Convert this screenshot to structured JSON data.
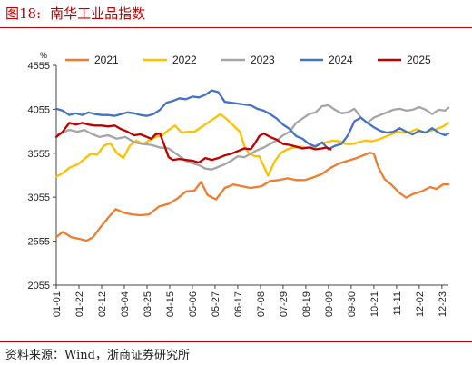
{
  "figure": {
    "number": "图18:",
    "title": "南华工业品指数",
    "source": "资料来源：Wind，浙商证券研究所",
    "title_color": "#c00000"
  },
  "chart_data": {
    "type": "line",
    "unit_label": "%",
    "ylim": [
      2055,
      4555
    ],
    "yticks": [
      2055,
      2555,
      3055,
      3555,
      4055,
      4555
    ],
    "xlim": [
      0,
      363
    ],
    "xticks": [
      {
        "label": "01-01",
        "day": 0
      },
      {
        "label": "01-22",
        "day": 21
      },
      {
        "label": "02-12",
        "day": 42
      },
      {
        "label": "03-04",
        "day": 63
      },
      {
        "label": "03-25",
        "day": 84
      },
      {
        "label": "04-15",
        "day": 105
      },
      {
        "label": "05-06",
        "day": 126
      },
      {
        "label": "05-27",
        "day": 147
      },
      {
        "label": "06-17",
        "day": 168
      },
      {
        "label": "07-08",
        "day": 189
      },
      {
        "label": "07-29",
        "day": 210
      },
      {
        "label": "08-19",
        "day": 231
      },
      {
        "label": "09-09",
        "day": 252
      },
      {
        "label": "09-30",
        "day": 273
      },
      {
        "label": "10-21",
        "day": 294
      },
      {
        "label": "11-11",
        "day": 315
      },
      {
        "label": "12-02",
        "day": 336
      },
      {
        "label": "12-23",
        "day": 357
      }
    ],
    "legend_position": "top",
    "grid": false,
    "series": [
      {
        "name": "2021",
        "color": "#ed7d31",
        "points": [
          [
            0,
            2600
          ],
          [
            6,
            2660
          ],
          [
            14,
            2600
          ],
          [
            22,
            2580
          ],
          [
            28,
            2560
          ],
          [
            34,
            2600
          ],
          [
            40,
            2700
          ],
          [
            48,
            2820
          ],
          [
            55,
            2920
          ],
          [
            62,
            2880
          ],
          [
            70,
            2860
          ],
          [
            78,
            2850
          ],
          [
            86,
            2860
          ],
          [
            95,
            2950
          ],
          [
            104,
            2980
          ],
          [
            112,
            3040
          ],
          [
            120,
            3120
          ],
          [
            128,
            3130
          ],
          [
            134,
            3230
          ],
          [
            140,
            3080
          ],
          [
            148,
            3030
          ],
          [
            156,
            3160
          ],
          [
            164,
            3200
          ],
          [
            172,
            3180
          ],
          [
            180,
            3160
          ],
          [
            190,
            3180
          ],
          [
            198,
            3240
          ],
          [
            206,
            3250
          ],
          [
            214,
            3270
          ],
          [
            222,
            3250
          ],
          [
            230,
            3250
          ],
          [
            238,
            3280
          ],
          [
            246,
            3320
          ],
          [
            254,
            3390
          ],
          [
            262,
            3440
          ],
          [
            270,
            3470
          ],
          [
            278,
            3500
          ],
          [
            284,
            3530
          ],
          [
            290,
            3560
          ],
          [
            294,
            3550
          ],
          [
            298,
            3400
          ],
          [
            304,
            3260
          ],
          [
            310,
            3200
          ],
          [
            318,
            3100
          ],
          [
            324,
            3050
          ],
          [
            330,
            3090
          ],
          [
            338,
            3120
          ],
          [
            346,
            3170
          ],
          [
            352,
            3150
          ],
          [
            358,
            3200
          ],
          [
            363,
            3200
          ]
        ]
      },
      {
        "name": "2022",
        "color": "#ffc000",
        "points": [
          [
            0,
            3290
          ],
          [
            6,
            3330
          ],
          [
            12,
            3390
          ],
          [
            20,
            3430
          ],
          [
            26,
            3490
          ],
          [
            32,
            3550
          ],
          [
            38,
            3540
          ],
          [
            44,
            3640
          ],
          [
            50,
            3670
          ],
          [
            56,
            3560
          ],
          [
            62,
            3500
          ],
          [
            68,
            3640
          ],
          [
            74,
            3700
          ],
          [
            80,
            3660
          ],
          [
            86,
            3700
          ],
          [
            92,
            3740
          ],
          [
            98,
            3760
          ],
          [
            104,
            3820
          ],
          [
            110,
            3870
          ],
          [
            116,
            3790
          ],
          [
            122,
            3800
          ],
          [
            128,
            3800
          ],
          [
            134,
            3850
          ],
          [
            140,
            3900
          ],
          [
            146,
            3950
          ],
          [
            152,
            4000
          ],
          [
            158,
            3940
          ],
          [
            164,
            3870
          ],
          [
            170,
            3800
          ],
          [
            174,
            3640
          ],
          [
            178,
            3560
          ],
          [
            184,
            3520
          ],
          [
            188,
            3520
          ],
          [
            192,
            3410
          ],
          [
            196,
            3300
          ],
          [
            202,
            3460
          ],
          [
            208,
            3560
          ],
          [
            214,
            3600
          ],
          [
            220,
            3620
          ],
          [
            226,
            3630
          ],
          [
            232,
            3620
          ],
          [
            238,
            3630
          ],
          [
            244,
            3660
          ],
          [
            250,
            3680
          ],
          [
            256,
            3700
          ],
          [
            262,
            3690
          ],
          [
            268,
            3660
          ],
          [
            274,
            3660
          ],
          [
            280,
            3680
          ],
          [
            286,
            3700
          ],
          [
            292,
            3690
          ],
          [
            298,
            3710
          ],
          [
            304,
            3740
          ],
          [
            310,
            3770
          ],
          [
            316,
            3800
          ],
          [
            322,
            3790
          ],
          [
            328,
            3800
          ],
          [
            334,
            3830
          ],
          [
            340,
            3790
          ],
          [
            346,
            3810
          ],
          [
            352,
            3830
          ],
          [
            358,
            3860
          ],
          [
            363,
            3900
          ]
        ]
      },
      {
        "name": "2023",
        "color": "#a5a5a5",
        "points": [
          [
            0,
            3770
          ],
          [
            6,
            3790
          ],
          [
            12,
            3820
          ],
          [
            20,
            3800
          ],
          [
            26,
            3820
          ],
          [
            32,
            3780
          ],
          [
            40,
            3740
          ],
          [
            48,
            3760
          ],
          [
            56,
            3720
          ],
          [
            64,
            3740
          ],
          [
            72,
            3680
          ],
          [
            80,
            3660
          ],
          [
            88,
            3650
          ],
          [
            96,
            3620
          ],
          [
            104,
            3610
          ],
          [
            112,
            3540
          ],
          [
            120,
            3470
          ],
          [
            126,
            3440
          ],
          [
            132,
            3420
          ],
          [
            138,
            3380
          ],
          [
            144,
            3370
          ],
          [
            150,
            3400
          ],
          [
            156,
            3430
          ],
          [
            162,
            3470
          ],
          [
            168,
            3520
          ],
          [
            174,
            3510
          ],
          [
            180,
            3550
          ],
          [
            186,
            3590
          ],
          [
            192,
            3620
          ],
          [
            198,
            3660
          ],
          [
            204,
            3700
          ],
          [
            210,
            3760
          ],
          [
            216,
            3800
          ],
          [
            222,
            3900
          ],
          [
            228,
            3950
          ],
          [
            234,
            4000
          ],
          [
            240,
            4020
          ],
          [
            246,
            4090
          ],
          [
            252,
            4100
          ],
          [
            258,
            4050
          ],
          [
            264,
            4010
          ],
          [
            270,
            4020
          ],
          [
            276,
            4060
          ],
          [
            282,
            3960
          ],
          [
            288,
            3900
          ],
          [
            294,
            3960
          ],
          [
            300,
            3990
          ],
          [
            306,
            4020
          ],
          [
            312,
            4050
          ],
          [
            318,
            4060
          ],
          [
            324,
            4040
          ],
          [
            330,
            4050
          ],
          [
            336,
            4080
          ],
          [
            342,
            4050
          ],
          [
            348,
            4000
          ],
          [
            354,
            4050
          ],
          [
            360,
            4040
          ],
          [
            363,
            4070
          ]
        ]
      },
      {
        "name": "2024",
        "color": "#4472c4",
        "points": [
          [
            0,
            4060
          ],
          [
            6,
            4040
          ],
          [
            12,
            3990
          ],
          [
            18,
            4010
          ],
          [
            24,
            3990
          ],
          [
            30,
            4020
          ],
          [
            36,
            4000
          ],
          [
            42,
            3990
          ],
          [
            48,
            3990
          ],
          [
            54,
            3980
          ],
          [
            60,
            4000
          ],
          [
            66,
            4020
          ],
          [
            72,
            4010
          ],
          [
            78,
            3990
          ],
          [
            84,
            3980
          ],
          [
            90,
            4000
          ],
          [
            96,
            4050
          ],
          [
            102,
            4130
          ],
          [
            108,
            4150
          ],
          [
            114,
            4180
          ],
          [
            120,
            4170
          ],
          [
            126,
            4200
          ],
          [
            132,
            4190
          ],
          [
            138,
            4220
          ],
          [
            144,
            4270
          ],
          [
            150,
            4250
          ],
          [
            156,
            4140
          ],
          [
            162,
            4130
          ],
          [
            168,
            4120
          ],
          [
            174,
            4110
          ],
          [
            180,
            4100
          ],
          [
            186,
            4060
          ],
          [
            192,
            4040
          ],
          [
            198,
            4000
          ],
          [
            204,
            3950
          ],
          [
            210,
            3880
          ],
          [
            216,
            3830
          ],
          [
            222,
            3750
          ],
          [
            228,
            3720
          ],
          [
            234,
            3660
          ],
          [
            240,
            3630
          ],
          [
            246,
            3680
          ],
          [
            252,
            3600
          ],
          [
            258,
            3640
          ],
          [
            264,
            3660
          ],
          [
            270,
            3760
          ],
          [
            276,
            3920
          ],
          [
            282,
            3960
          ],
          [
            288,
            3900
          ],
          [
            294,
            3850
          ],
          [
            300,
            3810
          ],
          [
            306,
            3790
          ],
          [
            312,
            3800
          ],
          [
            318,
            3840
          ],
          [
            324,
            3800
          ],
          [
            330,
            3770
          ],
          [
            336,
            3810
          ],
          [
            342,
            3790
          ],
          [
            348,
            3840
          ],
          [
            354,
            3790
          ],
          [
            360,
            3760
          ],
          [
            363,
            3780
          ]
        ]
      },
      {
        "name": "2025",
        "color": "#c00000",
        "points": [
          [
            0,
            3740
          ],
          [
            6,
            3800
          ],
          [
            12,
            3900
          ],
          [
            18,
            3880
          ],
          [
            24,
            3900
          ],
          [
            30,
            3880
          ],
          [
            36,
            3870
          ],
          [
            42,
            3870
          ],
          [
            48,
            3860
          ],
          [
            54,
            3870
          ],
          [
            60,
            3830
          ],
          [
            66,
            3800
          ],
          [
            72,
            3760
          ],
          [
            78,
            3770
          ],
          [
            84,
            3740
          ],
          [
            88,
            3720
          ],
          [
            92,
            3770
          ],
          [
            96,
            3780
          ],
          [
            100,
            3650
          ],
          [
            104,
            3510
          ],
          [
            108,
            3480
          ],
          [
            114,
            3490
          ],
          [
            120,
            3480
          ],
          [
            126,
            3470
          ],
          [
            132,
            3450
          ],
          [
            138,
            3500
          ],
          [
            144,
            3480
          ],
          [
            150,
            3500
          ],
          [
            156,
            3530
          ],
          [
            162,
            3550
          ],
          [
            168,
            3580
          ],
          [
            174,
            3610
          ],
          [
            180,
            3600
          ],
          [
            184,
            3670
          ],
          [
            188,
            3750
          ],
          [
            192,
            3780
          ],
          [
            198,
            3740
          ],
          [
            204,
            3710
          ],
          [
            210,
            3660
          ],
          [
            216,
            3650
          ],
          [
            222,
            3630
          ],
          [
            228,
            3610
          ],
          [
            234,
            3620
          ],
          [
            240,
            3600
          ],
          [
            246,
            3610
          ],
          [
            250,
            3620
          ],
          [
            254,
            3600
          ]
        ]
      }
    ]
  }
}
